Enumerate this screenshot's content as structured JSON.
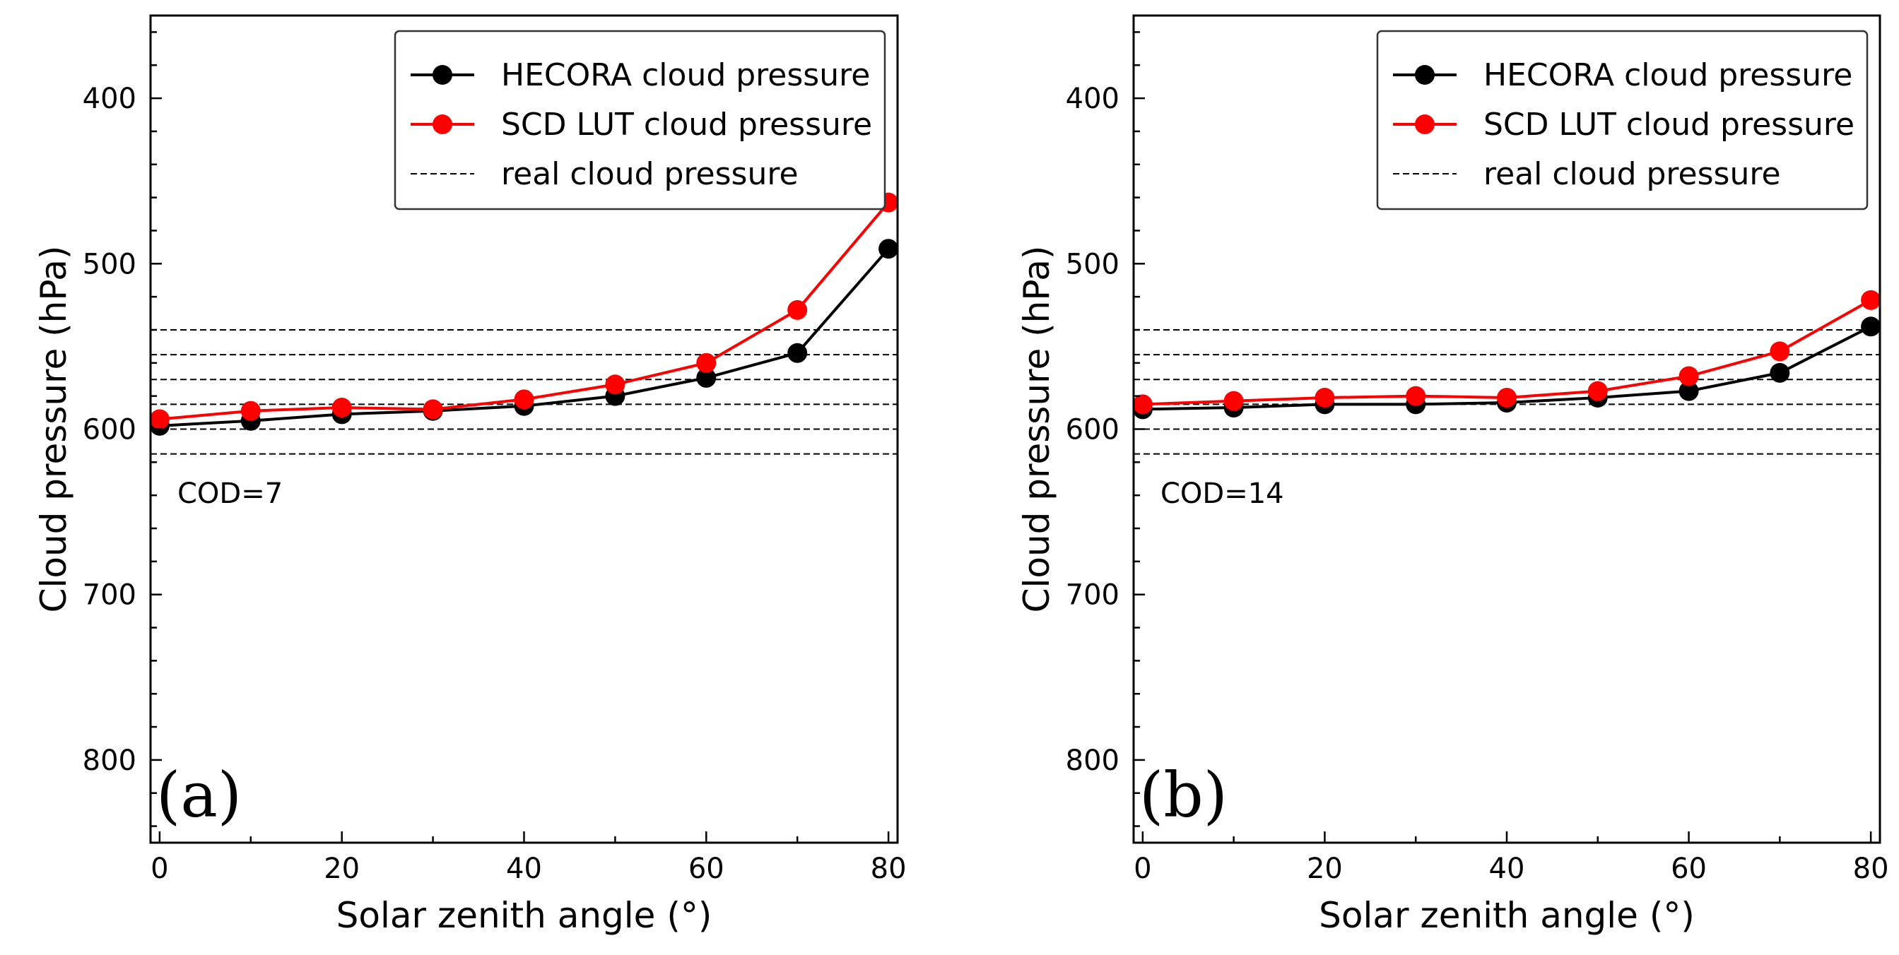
{
  "chart_data": [
    {
      "type": "line",
      "panel_label": "(a)",
      "annotation": "COD=7",
      "xlabel": "Solar zenith angle (°)",
      "ylabel": "Cloud pressure (hPa)",
      "xlim": [
        -1,
        81
      ],
      "ylim": [
        850,
        350
      ],
      "y_inverted": true,
      "xticks": [
        0,
        20,
        40,
        60,
        80
      ],
      "yticks": [
        400,
        500,
        600,
        700,
        800
      ],
      "x": [
        0,
        10,
        20,
        30,
        40,
        50,
        60,
        70,
        80
      ],
      "series": [
        {
          "name": "HECORA cloud pressure",
          "color": "#000000",
          "values": [
            598,
            595,
            591,
            589,
            586,
            580,
            569,
            554,
            491
          ]
        },
        {
          "name": "SCD LUT cloud pressure",
          "color": "#ff0000",
          "values": [
            594,
            589,
            587,
            588,
            582,
            573,
            560,
            528,
            463
          ]
        }
      ],
      "reference_lines": {
        "name": "real cloud pressure",
        "color": "#000000",
        "values": [
          540,
          555,
          570,
          585,
          600,
          615
        ]
      },
      "legend_location": "top-right"
    },
    {
      "type": "line",
      "panel_label": "(b)",
      "annotation": "COD=14",
      "xlabel": "Solar zenith angle (°)",
      "ylabel": "Cloud pressure (hPa)",
      "xlim": [
        -1,
        81
      ],
      "ylim": [
        850,
        350
      ],
      "y_inverted": true,
      "xticks": [
        0,
        20,
        40,
        60,
        80
      ],
      "yticks": [
        400,
        500,
        600,
        700,
        800
      ],
      "x": [
        0,
        10,
        20,
        30,
        40,
        50,
        60,
        70,
        80
      ],
      "series": [
        {
          "name": "HECORA cloud pressure",
          "color": "#000000",
          "values": [
            588,
            587,
            585,
            585,
            584,
            581,
            577,
            566,
            538
          ]
        },
        {
          "name": "SCD LUT cloud pressure",
          "color": "#ff0000",
          "values": [
            585,
            583,
            581,
            580,
            581,
            577,
            568,
            553,
            522
          ]
        }
      ],
      "reference_lines": {
        "name": "real cloud pressure",
        "color": "#000000",
        "values": [
          540,
          555,
          570,
          585,
          600,
          615
        ]
      },
      "legend_location": "top-right"
    }
  ]
}
